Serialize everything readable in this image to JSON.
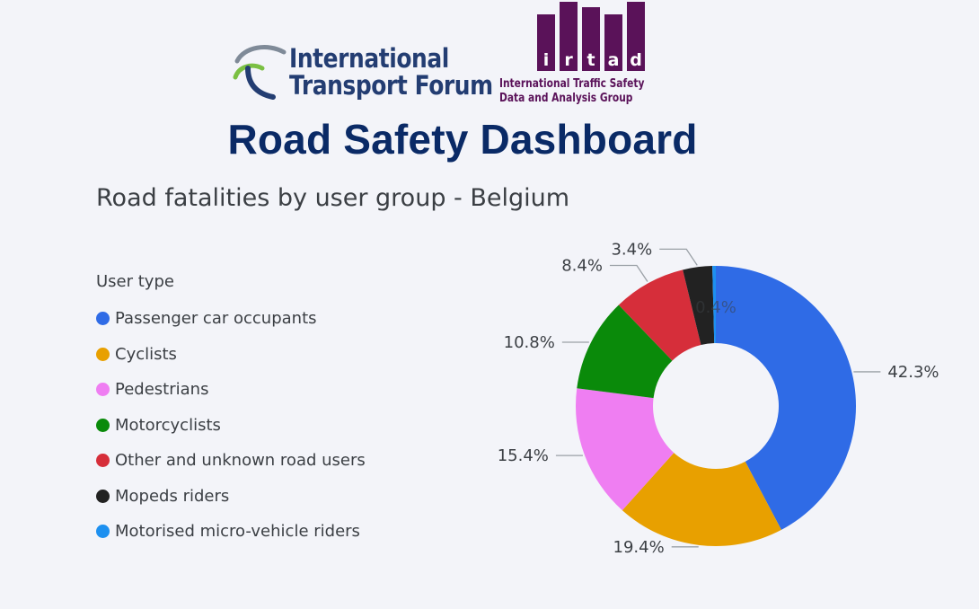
{
  "header": {
    "itf_logo_lines": [
      "International",
      "Transport Forum"
    ],
    "irtad_logo_text": "irtad",
    "irtad_caption_lines": [
      "International Traffic Safety",
      "Data and Analysis Group"
    ],
    "dashboard_title": "Road Safety Dashboard"
  },
  "colors": {
    "passenger": "#2f6be6",
    "cyclists": "#e8a000",
    "pedestrians": "#ef7ef2",
    "motorcyclists": "#0a8a0a",
    "other": "#d62e3a",
    "mopeds": "#222222",
    "micro": "#1d90f0",
    "itf_navy": "#233d72",
    "irtad_purple": "#5a1259"
  },
  "chart_data": {
    "type": "pie",
    "title": "Road fatalities by user group - Belgium",
    "legend_title": "User type",
    "legend_position": "left",
    "slices": [
      {
        "name": "Passenger car occupants",
        "value": 42.3,
        "label": "42.3%",
        "color": "#2f6be6"
      },
      {
        "name": "Cyclists",
        "value": 19.4,
        "label": "19.4%",
        "color": "#e8a000"
      },
      {
        "name": "Pedestrians",
        "value": 15.4,
        "label": "15.4%",
        "color": "#ef7ef2"
      },
      {
        "name": "Motorcyclists",
        "value": 10.8,
        "label": "10.8%",
        "color": "#0a8a0a"
      },
      {
        "name": "Other and unknown road users",
        "value": 8.4,
        "label": "8.4%",
        "color": "#d62e3a"
      },
      {
        "name": "Mopeds riders",
        "value": 3.4,
        "label": "3.4%",
        "color": "#222222"
      },
      {
        "name": "Motorised micro-vehicle riders",
        "value": 0.4,
        "label": "0.4%",
        "color": "#1d90f0"
      }
    ]
  }
}
